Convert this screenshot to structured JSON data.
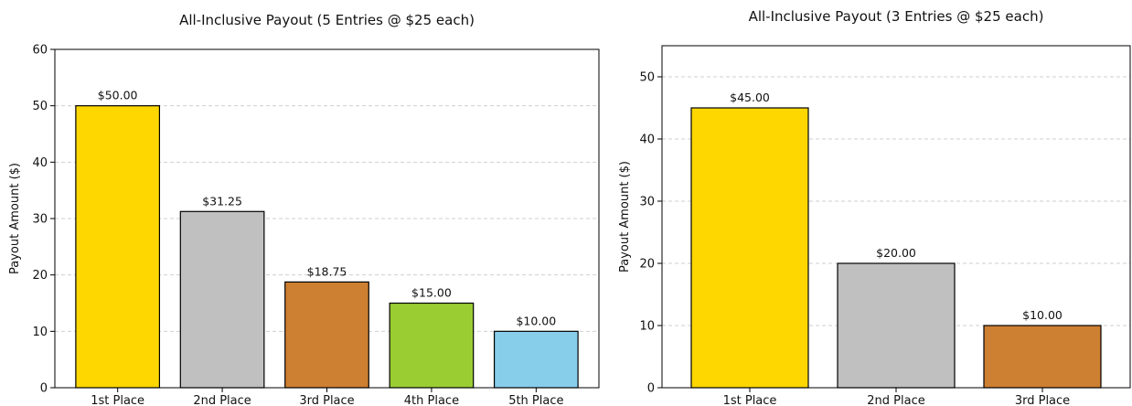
{
  "chart_data": [
    {
      "type": "bar",
      "title": "All-Inclusive Payout (5 Entries @ $25 each)",
      "xlabel": "",
      "ylabel": "Payout Amount ($)",
      "categories": [
        "1st Place",
        "2nd Place",
        "3rd Place",
        "4th Place",
        "5th Place"
      ],
      "values": [
        50.0,
        31.25,
        18.75,
        15.0,
        10.0
      ],
      "value_labels": [
        "$50.00",
        "$31.25",
        "$18.75",
        "$15.00",
        "$10.00"
      ],
      "colors": [
        "#FFD700",
        "#C0C0C0",
        "#CD7F32",
        "#9ACD32",
        "#87CEEB"
      ],
      "ylim": [
        0,
        60
      ],
      "yticks": [
        0,
        10,
        20,
        30,
        40,
        50,
        60
      ],
      "grid": "y-dashed",
      "legend": "none"
    },
    {
      "type": "bar",
      "title": "All-Inclusive Payout (3 Entries @ $25 each)",
      "xlabel": "",
      "ylabel": "Payout Amount ($)",
      "categories": [
        "1st Place",
        "2nd Place",
        "3rd Place"
      ],
      "values": [
        45.0,
        20.0,
        10.0
      ],
      "value_labels": [
        "$45.00",
        "$20.00",
        "$10.00"
      ],
      "colors": [
        "#FFD700",
        "#C0C0C0",
        "#CD7F32"
      ],
      "ylim": [
        0,
        55
      ],
      "yticks": [
        0,
        10,
        20,
        30,
        40,
        50
      ],
      "grid": "y-dashed",
      "legend": "none"
    }
  ]
}
